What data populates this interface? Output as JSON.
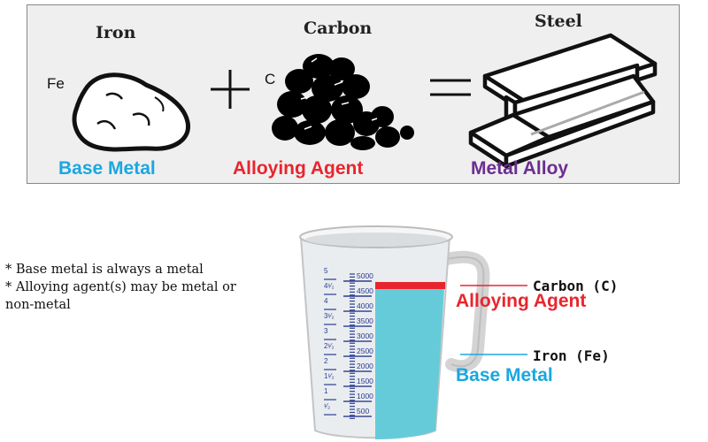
{
  "equation": {
    "iron": {
      "title": "Iron",
      "symbol": "Fe",
      "role": "Base Metal"
    },
    "carbon": {
      "title": "Carbon",
      "symbol": "C",
      "role": "Alloying Agent"
    },
    "steel": {
      "title": "Steel",
      "role": "Metal Alloy"
    },
    "plus_icon": "plus-icon",
    "equals_icon": "equals-icon"
  },
  "notes": {
    "line1": "* Base metal is always a metal",
    "line2": "* Alloying agent(s) may be metal or",
    "line3": "non-metal"
  },
  "cup": {
    "marks_left": [
      "5",
      "4¹⁄₂",
      "4",
      "3¹⁄₂",
      "3",
      "2¹⁄₂",
      "2",
      "1¹⁄₂",
      "1",
      "¹⁄₂"
    ],
    "marks_right": [
      "5000",
      "4500",
      "4000",
      "3500",
      "3000",
      "2500",
      "2000",
      "1500",
      "1000",
      "500"
    ],
    "carbon_label": "Carbon (C)",
    "carbon_role": "Alloying Agent",
    "iron_label": "Iron (Fe)",
    "iron_role": "Base Metal"
  },
  "colors": {
    "base_metal": "#1aa7e0",
    "alloying_agent": "#e8252e",
    "metal_alloy": "#6b2e90",
    "liquid": "#66cbd9",
    "carbon_layer": "#e8252e",
    "scale": "#2c3b8f"
  }
}
